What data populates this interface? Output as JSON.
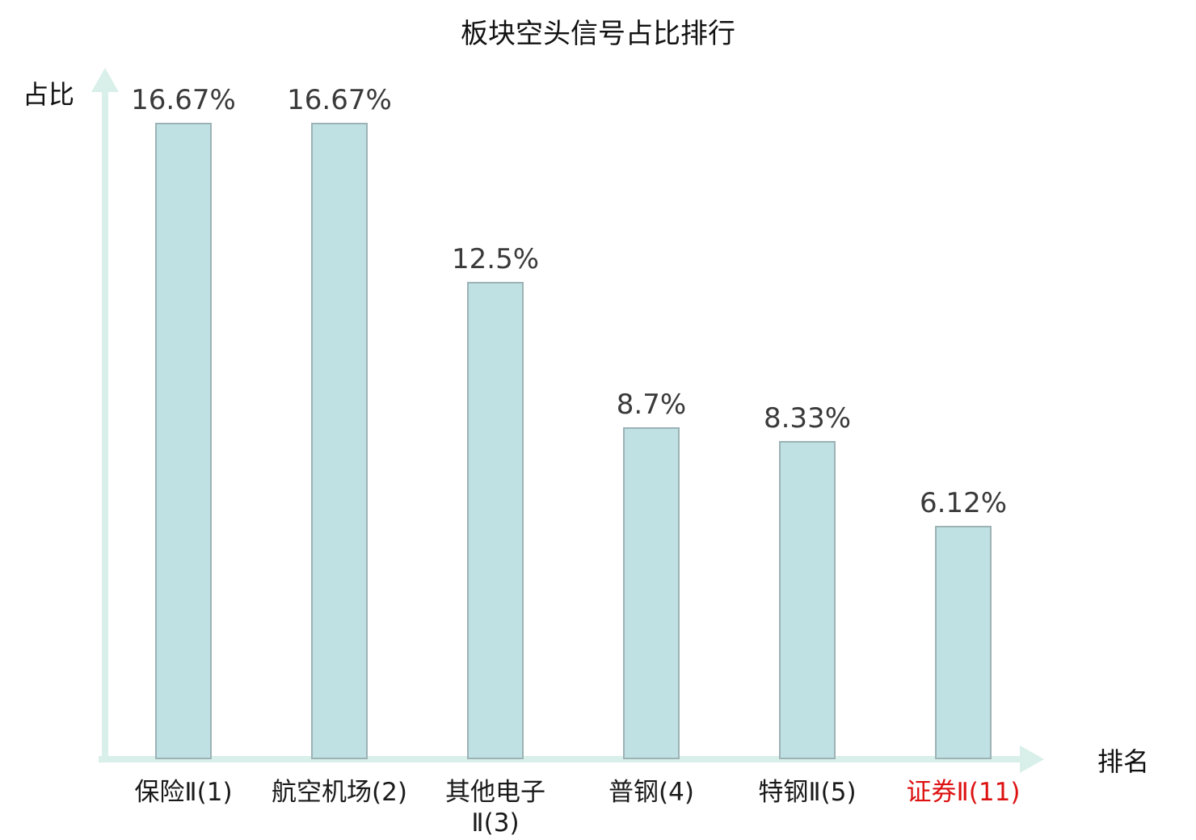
{
  "title": "板块空头信号占比排行",
  "chart_data": {
    "type": "bar",
    "title": "板块空头信号占比排行",
    "xlabel": "排名",
    "ylabel": "占比",
    "categories": [
      "保险Ⅱ(1)",
      "航空机场(2)",
      "其他电子Ⅱ(3)",
      "普钢(4)",
      "特钢Ⅱ(5)",
      "证券Ⅱ(11)"
    ],
    "category_display": [
      "保险Ⅱ(1)",
      "航空机场(2)",
      "其他电子\nⅡ(3)",
      "普钢(4)",
      "特钢Ⅱ(5)",
      "证券Ⅱ(11)"
    ],
    "values": [
      16.67,
      16.67,
      12.5,
      8.7,
      8.33,
      6.12
    ],
    "value_labels": [
      "16.67%",
      "16.67%",
      "12.5%",
      "8.7%",
      "8.33%",
      "6.12%"
    ],
    "highlighted_category_index": 5,
    "ylim": [
      0,
      18
    ],
    "grid": false,
    "legend": null
  },
  "colors": {
    "bar_fill": "#bfe1e4",
    "bar_border": "#9cb2b5",
    "axis": "#d9efe9",
    "value_label": "#3a3a3a",
    "category_label": "#1a1a1a",
    "highlight_label": "#dd1111"
  }
}
